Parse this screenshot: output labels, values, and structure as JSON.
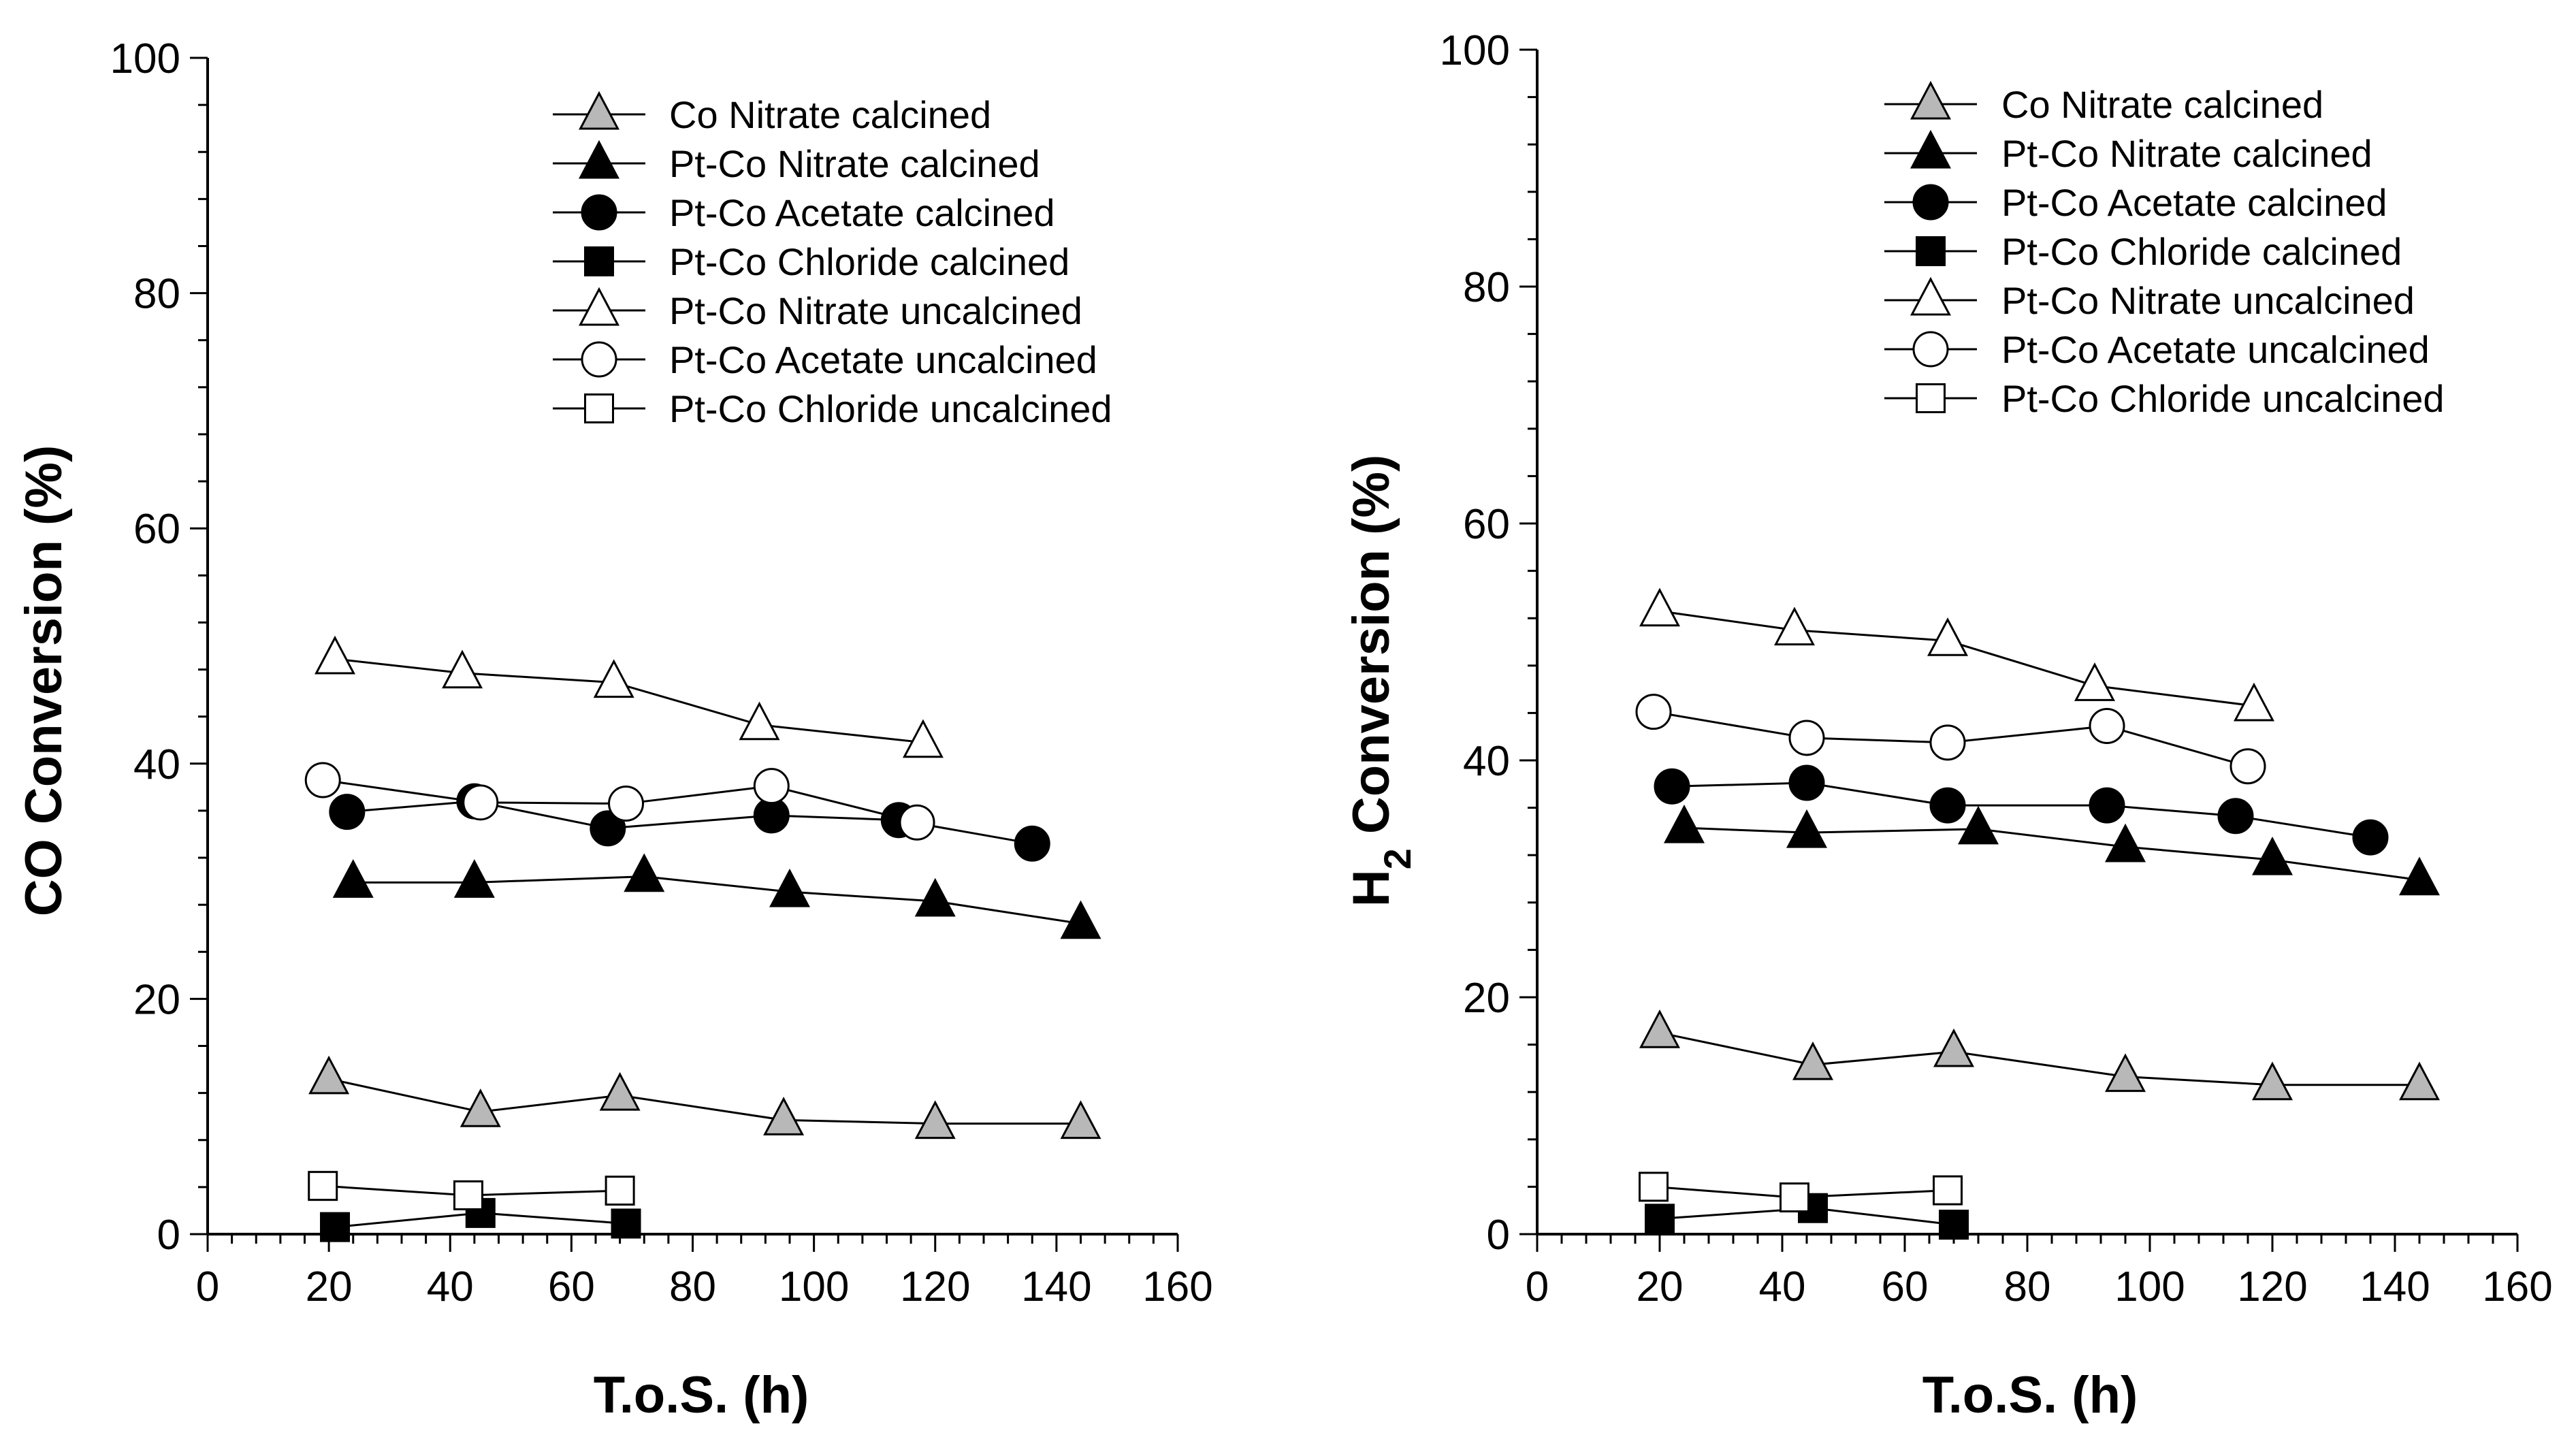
{
  "chart_data": [
    {
      "id": "co",
      "type": "line",
      "title": "",
      "xlabel": "T.o.S. (h)",
      "ylabel": "CO Conversion (%)",
      "xlim": [
        0,
        160
      ],
      "ylim": [
        0,
        100
      ],
      "xticks": [
        "0",
        "20",
        "40",
        "60",
        "80",
        "100",
        "120",
        "140",
        "160"
      ],
      "yticks": [
        "0",
        "20",
        "40",
        "60",
        "80",
        "100"
      ],
      "legend_position": "top-right",
      "series": [
        {
          "name": "Co Nitrate calcined",
          "marker": "triangle",
          "color": "#b8b8b8",
          "x": [
            20,
            45,
            68,
            95,
            120,
            144
          ],
          "y": [
            13.2,
            10.4,
            11.8,
            9.7,
            9.4,
            9.4
          ]
        },
        {
          "name": "Pt-Co Nitrate calcined",
          "marker": "triangle",
          "color": "#000000",
          "x": [
            24,
            44,
            72,
            96,
            120,
            144
          ],
          "y": [
            29.9,
            29.9,
            30.4,
            29.1,
            28.3,
            26.4
          ]
        },
        {
          "name": "Pt-Co Acetate calcined",
          "marker": "circle",
          "color": "#000000",
          "x": [
            23,
            44,
            66,
            93,
            114,
            136
          ],
          "y": [
            35.9,
            36.8,
            34.5,
            35.6,
            35.2,
            33.2
          ]
        },
        {
          "name": "Pt-Co Chloride calcined",
          "marker": "square",
          "color": "#000000",
          "x": [
            21,
            45,
            69
          ],
          "y": [
            0.6,
            1.8,
            0.9
          ]
        },
        {
          "name": "Pt-Co Nitrate uncalcined",
          "marker": "triangle",
          "color": "#ffffff",
          "x": [
            21,
            42,
            67,
            91,
            118
          ],
          "y": [
            48.9,
            47.7,
            46.9,
            43.3,
            41.8
          ]
        },
        {
          "name": "Pt-Co Acetate uncalcined",
          "marker": "circle",
          "color": "#ffffff",
          "x": [
            19,
            45,
            69,
            93,
            117
          ],
          "y": [
            38.6,
            36.7,
            36.6,
            38.1,
            35.0
          ]
        },
        {
          "name": "Pt-Co Chloride uncalcined",
          "marker": "square",
          "color": "#ffffff",
          "x": [
            19,
            43,
            68
          ],
          "y": [
            4.1,
            3.3,
            3.7
          ]
        }
      ]
    },
    {
      "id": "h2",
      "type": "line",
      "title": "",
      "xlabel": "T.o.S. (h)",
      "ylabel": "H2 Conversion (%)",
      "ylabel_main": "H",
      "ylabel_sub": "2",
      "ylabel_rest": " Conversion (%)",
      "xlim": [
        0,
        160
      ],
      "ylim": [
        0,
        100
      ],
      "xticks": [
        "0",
        "20",
        "40",
        "60",
        "80",
        "100",
        "120",
        "140",
        "160"
      ],
      "yticks": [
        "0",
        "20",
        "40",
        "60",
        "80",
        "100"
      ],
      "legend_position": "top-right",
      "series": [
        {
          "name": "Co Nitrate calcined",
          "marker": "triangle",
          "color": "#b8b8b8",
          "x": [
            20,
            45,
            68,
            96,
            120,
            144
          ],
          "y": [
            17.0,
            14.3,
            15.4,
            13.3,
            12.6,
            12.6
          ]
        },
        {
          "name": "Pt-Co Nitrate calcined",
          "marker": "triangle",
          "color": "#000000",
          "x": [
            24,
            44,
            72,
            96,
            120,
            144
          ],
          "y": [
            34.3,
            33.9,
            34.2,
            32.7,
            31.6,
            29.9
          ]
        },
        {
          "name": "Pt-Co Acetate calcined",
          "marker": "circle",
          "color": "#000000",
          "x": [
            22,
            44,
            67,
            93,
            114,
            136
          ],
          "y": [
            37.8,
            38.1,
            36.2,
            36.2,
            35.3,
            33.5
          ]
        },
        {
          "name": "Pt-Co Chloride calcined",
          "marker": "square",
          "color": "#000000",
          "x": [
            20,
            45,
            68
          ],
          "y": [
            1.3,
            2.2,
            0.8
          ]
        },
        {
          "name": "Pt-Co Nitrate uncalcined",
          "marker": "triangle",
          "color": "#ffffff",
          "x": [
            20,
            42,
            67,
            91,
            117
          ],
          "y": [
            52.6,
            51.0,
            50.1,
            46.3,
            44.6
          ]
        },
        {
          "name": "Pt-Co Acetate uncalcined",
          "marker": "circle",
          "color": "#ffffff",
          "x": [
            19,
            44,
            67,
            93,
            116
          ],
          "y": [
            44.1,
            41.9,
            41.5,
            42.9,
            39.5
          ]
        },
        {
          "name": "Pt-Co Chloride uncalcined",
          "marker": "square",
          "color": "#ffffff",
          "x": [
            19,
            42,
            67
          ],
          "y": [
            4.0,
            3.1,
            3.7
          ]
        }
      ]
    }
  ]
}
